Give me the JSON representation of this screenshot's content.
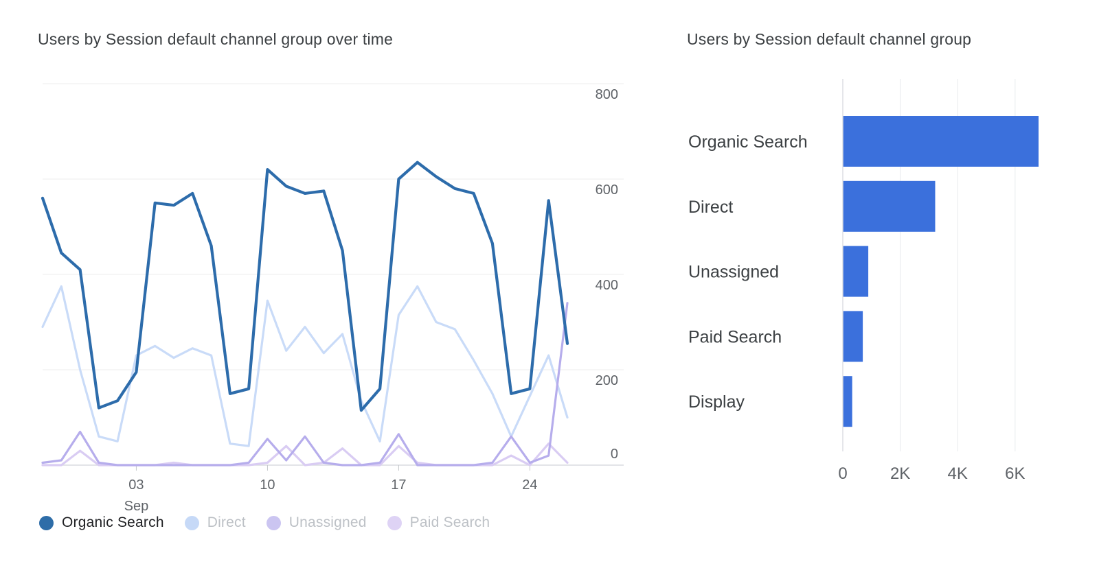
{
  "page": {
    "background": "#ffffff"
  },
  "colors": {
    "bar_blue": "#3b70dc",
    "organic_line": "#2d6cab",
    "direct_line": "#c9dbf8",
    "unassigned_line": "#b6adec",
    "paid_line": "#d9ccf3",
    "gridline": "#ececec",
    "axis_line": "#dadce0",
    "tick_mark": "#c4c7ca",
    "text_dark": "#3c4043",
    "text_gray": "#5f6368",
    "legend_inactive_text": "#bdc1c6",
    "legend_active_text": "#202124"
  },
  "chart_data": [
    {
      "type": "line",
      "title": "Users by Session default channel group over time",
      "ylim": [
        0,
        800
      ],
      "y_ticks": [
        0,
        200,
        400,
        600,
        800
      ],
      "grid": true,
      "legend_position": "bottom",
      "x_axis_month": "Sep",
      "x_ticks": [
        {
          "label": "03",
          "sub": "Sep",
          "day": 5
        },
        {
          "label": "10",
          "sub": "",
          "day": 12
        },
        {
          "label": "17",
          "sub": "",
          "day": 19
        },
        {
          "label": "24",
          "sub": "",
          "day": 26
        }
      ],
      "n_points": 29,
      "series": [
        {
          "name": "Organic Search",
          "color": "#2d6cab",
          "values": [
            560,
            445,
            410,
            120,
            135,
            195,
            550,
            545,
            570,
            460,
            150,
            160,
            620,
            585,
            570,
            575,
            450,
            115,
            160,
            600,
            635,
            605,
            580,
            570,
            465,
            150,
            160,
            555,
            255
          ]
        },
        {
          "name": "Direct",
          "color": "#c9dbf8",
          "values": [
            290,
            375,
            200,
            60,
            50,
            230,
            250,
            225,
            245,
            230,
            45,
            40,
            345,
            240,
            290,
            235,
            275,
            135,
            50,
            315,
            375,
            300,
            285,
            220,
            150,
            60,
            145,
            230,
            100
          ]
        },
        {
          "name": "Unassigned",
          "color": "#b6adec",
          "values": [
            5,
            10,
            70,
            5,
            0,
            0,
            0,
            0,
            0,
            0,
            0,
            5,
            55,
            10,
            60,
            5,
            0,
            0,
            5,
            65,
            0,
            0,
            0,
            0,
            5,
            60,
            5,
            20,
            340
          ]
        },
        {
          "name": "Paid Search",
          "color": "#d9ccf3",
          "values": [
            0,
            0,
            30,
            0,
            0,
            0,
            0,
            5,
            0,
            0,
            0,
            0,
            5,
            40,
            0,
            5,
            35,
            0,
            0,
            40,
            5,
            0,
            0,
            0,
            0,
            20,
            0,
            45,
            5
          ]
        }
      ],
      "legend": [
        {
          "label": "Organic Search",
          "dot_color": "#2e6da8",
          "text_color": "#202124"
        },
        {
          "label": "Direct",
          "dot_color": "#c6d9f7",
          "text_color": "#bdc1c6"
        },
        {
          "label": "Unassigned",
          "dot_color": "#cbc5f1",
          "text_color": "#bdc1c6"
        },
        {
          "label": "Paid Search",
          "dot_color": "#ded3f5",
          "text_color": "#bdc1c6"
        }
      ]
    },
    {
      "type": "bar",
      "title": "Users by Session default channel group",
      "orientation": "horizontal",
      "categories": [
        "Organic Search",
        "Direct",
        "Unassigned",
        "Paid Search",
        "Display"
      ],
      "values": [
        6800,
        3200,
        870,
        680,
        310
      ],
      "xlim": [
        0,
        7600
      ],
      "x_ticks": [
        {
          "label": "0",
          "value": 0
        },
        {
          "label": "2K",
          "value": 2000
        },
        {
          "label": "4K",
          "value": 4000
        },
        {
          "label": "6K",
          "value": 6000
        }
      ],
      "bar_color": "#3b70dc",
      "grid": true
    }
  ]
}
